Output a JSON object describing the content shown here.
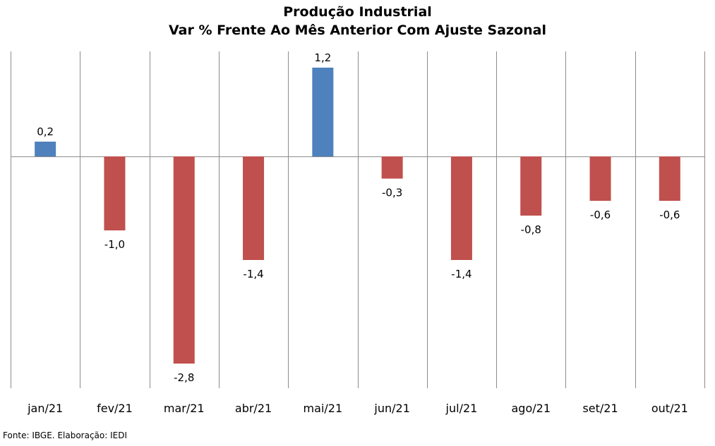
{
  "chart_data": {
    "type": "bar",
    "title": "Produção Industrial",
    "subtitle": "Var % Frente Ao Mês Anterior Com Ajuste Sazonal",
    "categories": [
      "jan/21",
      "fev/21",
      "mar/21",
      "abr/21",
      "mai/21",
      "jun/21",
      "jul/21",
      "ago/21",
      "set/21",
      "out/21"
    ],
    "series": [
      {
        "values": [
          0.2,
          -1.0,
          -2.8,
          -1.4,
          1.2,
          -0.3,
          -1.4,
          -0.8,
          -0.6,
          -0.6
        ],
        "labels": [
          "0,2",
          "-1,0",
          "-2,8",
          "-1,4",
          "1,2",
          "-0,3",
          "-1,4",
          "-0,8",
          "-0,6",
          "-0,6"
        ]
      }
    ],
    "ylim": [
      -3.0,
      1.4
    ],
    "grid": "vertical",
    "legend": "none",
    "colors": {
      "positive": "#4f81bd",
      "negative": "#c0504d",
      "grid": "#8c8c8c"
    }
  },
  "source": "Fonte: IBGE. Elaboração: IEDI"
}
